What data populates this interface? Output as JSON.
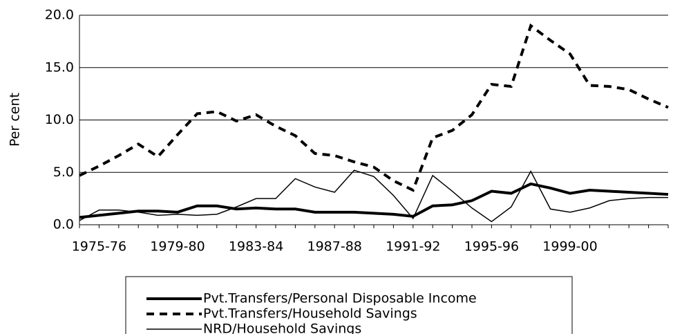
{
  "chart_data": {
    "type": "line",
    "y_label": "Per cent",
    "categories": [
      null,
      "1975-76",
      null,
      null,
      null,
      "1979-80",
      null,
      null,
      null,
      "1983-84",
      null,
      null,
      null,
      "1987-88",
      null,
      null,
      null,
      "1991-92",
      null,
      null,
      null,
      "1995-96",
      null,
      null,
      null,
      "1999-00",
      null,
      null,
      null,
      null,
      null
    ],
    "series": [
      {
        "name": "Pvt.Transfers/Personal Disposable Income",
        "color": "#000000",
        "style": "thick",
        "values": [
          0.7,
          0.9,
          1.1,
          1.3,
          1.3,
          1.2,
          1.8,
          1.8,
          1.5,
          1.6,
          1.5,
          1.5,
          1.2,
          1.2,
          1.2,
          1.1,
          1.0,
          0.8,
          1.8,
          1.9,
          2.3,
          3.2,
          3.0,
          3.9,
          3.5,
          3.0,
          3.3,
          3.2,
          3.1,
          3.0,
          2.9
        ]
      },
      {
        "name": "Pvt.Transfers/Household Savings",
        "color": "#000000",
        "style": "dashed",
        "values": [
          4.7,
          5.6,
          6.6,
          7.7,
          6.5,
          8.6,
          10.6,
          10.8,
          9.9,
          10.5,
          9.4,
          8.5,
          6.8,
          6.6,
          6.0,
          5.5,
          4.2,
          3.3,
          8.3,
          9.0,
          10.5,
          13.4,
          13.2,
          19.0,
          17.6,
          16.3,
          13.3,
          13.2,
          12.9,
          12.0,
          11.2
        ]
      },
      {
        "name": "NRD/Household Savings",
        "color": "#000000",
        "style": "thin",
        "values": [
          0.4,
          1.4,
          1.4,
          1.2,
          0.9,
          1.0,
          0.9,
          1.0,
          1.7,
          2.5,
          2.5,
          4.4,
          3.6,
          3.1,
          5.2,
          4.6,
          2.8,
          0.6,
          4.7,
          3.2,
          1.6,
          0.3,
          1.7,
          5.1,
          1.5,
          1.2,
          1.6,
          2.3,
          2.5,
          2.6,
          2.6
        ]
      }
    ],
    "ylim": [
      0,
      20
    ],
    "yticks": [
      {
        "value": 0,
        "label": "0.0"
      },
      {
        "value": 5,
        "label": "5.0"
      },
      {
        "value": 10,
        "label": "10.0"
      },
      {
        "value": 15,
        "label": "15.0"
      },
      {
        "value": 20,
        "label": "20.0"
      }
    ],
    "grid": true,
    "legend": "bottom"
  }
}
